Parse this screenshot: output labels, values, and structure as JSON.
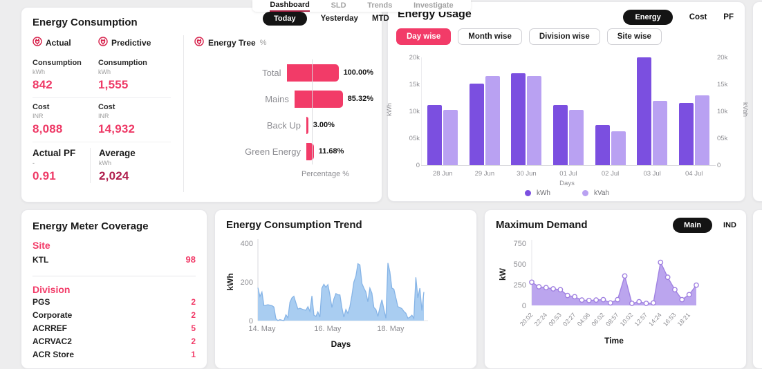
{
  "accent": {
    "pink": "#f23b68",
    "dark_red": "#a61e41",
    "purple_dark": "#7b4fe0",
    "purple_light": "#b9a1f2",
    "blue_fill": "#a9cdf1",
    "demand_fill": "#b49bec"
  },
  "nav": {
    "tabs": [
      {
        "label": "Dashboard",
        "active": true
      },
      {
        "label": "SLD",
        "active": false
      },
      {
        "label": "Trends",
        "active": false
      },
      {
        "label": "Investigate",
        "active": false
      }
    ],
    "time_filters": [
      {
        "label": "Today",
        "active": true
      },
      {
        "label": "Yesterday",
        "active": false
      },
      {
        "label": "MTD",
        "active": false
      }
    ]
  },
  "energy_consumption": {
    "title": "Energy Consumption",
    "columns": [
      {
        "label": "Actual"
      },
      {
        "label": "Predictive"
      }
    ],
    "metrics": [
      {
        "label": "Consumption",
        "unit": "kWh",
        "actual": "842",
        "predictive": "1,555"
      },
      {
        "label": "Cost",
        "unit": "INR",
        "actual": "8,088",
        "predictive": "14,932"
      }
    ],
    "pf": {
      "label": "Actual PF",
      "unit": "-",
      "value": "0.91"
    },
    "average": {
      "label": "Average",
      "unit": "kWh",
      "value": "2,024"
    },
    "energy_tree": {
      "title": "Energy Tree",
      "unit": "%",
      "xlabel": "Percentage %",
      "chart_data": {
        "type": "bar",
        "orientation": "horizontal",
        "categories": [
          "Total",
          "Mains",
          "Back Up",
          "Green Energy"
        ],
        "values": [
          100.0,
          85.32,
          3.0,
          11.68
        ],
        "value_labels": [
          "100.00%",
          "85.32%",
          "3.00%",
          "11.68%"
        ],
        "xlim": [
          0,
          100
        ]
      }
    }
  },
  "energy_usage": {
    "title": "Energy Usage",
    "view_toggle": [
      {
        "label": "Energy",
        "active": true
      },
      {
        "label": "Cost",
        "active": false
      },
      {
        "label": "PF",
        "active": false
      }
    ],
    "filters": [
      {
        "label": "Day wise",
        "active": true
      },
      {
        "label": "Month wise",
        "active": false
      },
      {
        "label": "Division wise",
        "active": false
      },
      {
        "label": "Site wise",
        "active": false
      }
    ],
    "chart_data": {
      "type": "bar",
      "categories": [
        "28 Jun",
        "29 Jun",
        "30 Jun",
        "01 Jul",
        "02 Jul",
        "03 Jul",
        "04 Jul"
      ],
      "series": [
        {
          "name": "kWh",
          "color": "#7b4fe0",
          "values": [
            11100,
            15100,
            17100,
            11100,
            7400,
            20000,
            11600
          ]
        },
        {
          "name": "kVah",
          "color": "#b9a1f2",
          "values": [
            10300,
            16600,
            16600,
            10300,
            6300,
            11900,
            12900
          ]
        }
      ],
      "ylim": [
        0,
        20000
      ],
      "yticks": [
        "0",
        "05k",
        "10k",
        "15k",
        "20k"
      ],
      "ylabel": "kWh",
      "ylabel_right": "kVah",
      "xlabel": "Days",
      "legend_position": "bottom"
    }
  },
  "meter_coverage": {
    "title": "Energy Meter Coverage",
    "sections": [
      {
        "heading": "Site",
        "rows": [
          {
            "name": "KTL",
            "value": "98"
          }
        ]
      },
      {
        "heading": "Division",
        "rows": [
          {
            "name": "PGS",
            "value": "2"
          },
          {
            "name": "Corporate",
            "value": "2"
          },
          {
            "name": "ACRREF",
            "value": "5"
          },
          {
            "name": "ACRVAC2",
            "value": "2"
          },
          {
            "name": "ACR Store",
            "value": "1"
          }
        ]
      }
    ]
  },
  "trend": {
    "title": "Energy Consumption Trend",
    "chart_data": {
      "type": "area",
      "ylabel": "kWh",
      "xlabel": "Days",
      "ylim": [
        0,
        400
      ],
      "yticks": [
        "400",
        "200",
        "0"
      ],
      "x_ticks": [
        "14. May",
        "16. May",
        "18. May"
      ],
      "values": [
        170,
        125,
        148,
        78,
        80,
        82,
        80,
        78,
        70,
        10,
        0,
        5,
        2,
        0,
        30,
        15,
        95,
        118,
        126,
        92,
        60,
        64,
        60,
        56,
        54,
        72,
        48,
        128,
        28,
        22,
        45,
        18,
        168,
        188,
        172,
        186,
        132,
        68,
        112,
        140,
        134,
        133,
        68,
        18,
        58,
        38,
        72,
        130,
        200,
        230,
        294,
        288,
        192,
        168,
        148,
        98,
        168,
        142,
        68,
        58,
        22,
        68,
        108,
        58,
        12,
        298,
        252,
        168,
        163,
        118,
        72,
        68,
        62,
        48,
        38,
        12,
        18,
        28,
        12,
        224,
        118,
        168,
        52,
        148
      ]
    }
  },
  "max_demand": {
    "title": "Maximum Demand",
    "toggle": [
      {
        "label": "Main",
        "active": true
      },
      {
        "label": "IND",
        "active": false
      }
    ],
    "chart_data": {
      "type": "line",
      "markers": true,
      "ylabel": "kW",
      "xlabel": "Time",
      "ylim": [
        0,
        750
      ],
      "yticks": [
        "750",
        "500",
        "250",
        "0"
      ],
      "x_ticks": [
        "20:02",
        "22:24",
        "00:53",
        "02:27",
        "04:06",
        "06:02",
        "08:57",
        "10:02",
        "12:57",
        "14:24",
        "16:53",
        "18:21"
      ],
      "values": [
        280,
        225,
        215,
        200,
        190,
        120,
        105,
        65,
        60,
        65,
        70,
        30,
        70,
        355,
        25,
        45,
        25,
        30,
        520,
        340,
        190,
        70,
        130,
        245
      ]
    }
  }
}
